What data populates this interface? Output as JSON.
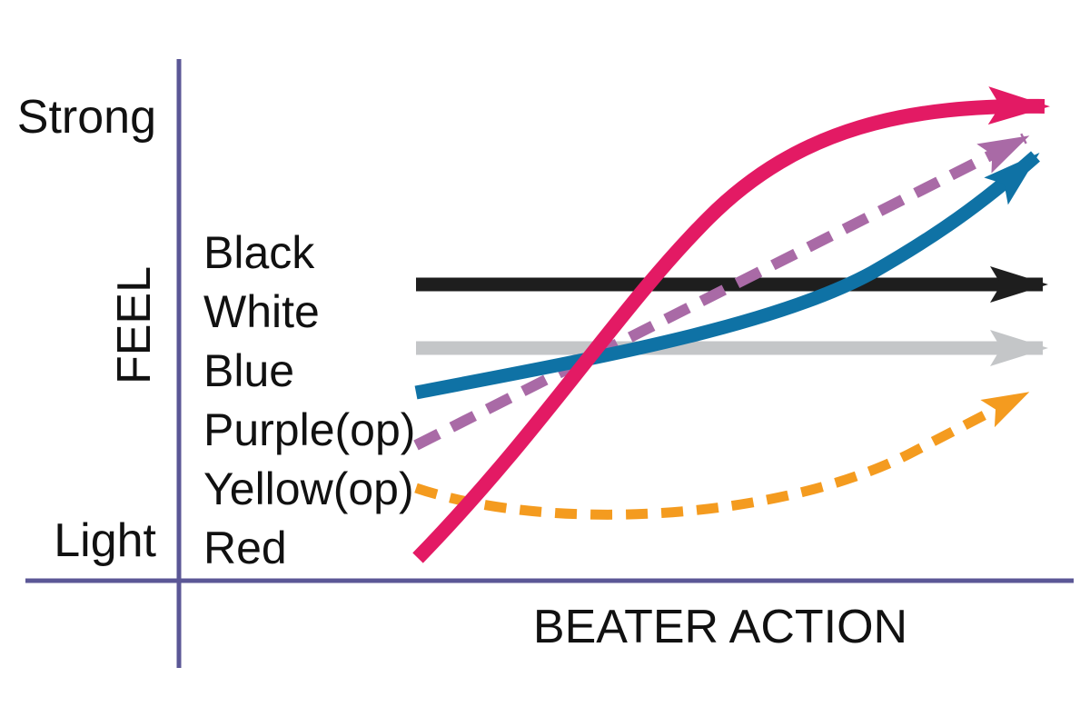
{
  "axes": {
    "y_label": "FEEL",
    "x_label": "BEATER ACTION",
    "y_top": "Strong",
    "y_bottom": "Light",
    "axis_color": "#5b5796"
  },
  "legend": [
    {
      "name": "Black"
    },
    {
      "name": "White"
    },
    {
      "name": "Blue"
    },
    {
      "name": "Purple(op)"
    },
    {
      "name": "Yellow(op)"
    },
    {
      "name": "Red"
    }
  ],
  "series": [
    {
      "name": "Black",
      "color": "#1e1e1e",
      "style": "solid",
      "trend": "flat"
    },
    {
      "name": "White",
      "color": "#c4c6c8",
      "style": "solid",
      "trend": "flat"
    },
    {
      "name": "Blue",
      "color": "#0f72a5",
      "style": "solid",
      "trend": "rising"
    },
    {
      "name": "Purple(op)",
      "color": "#a96aa6",
      "style": "dashed",
      "trend": "rising"
    },
    {
      "name": "Yellow(op)",
      "color": "#f49b1f",
      "style": "dashed",
      "trend": "dips then rises"
    },
    {
      "name": "Red",
      "color": "#e31a64",
      "style": "solid",
      "trend": "steeply rising"
    }
  ]
}
